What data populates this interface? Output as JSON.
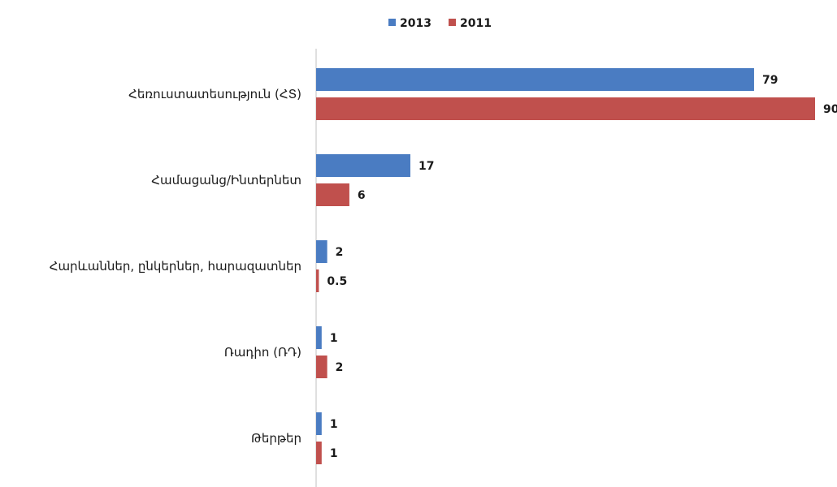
{
  "chart_data": {
    "type": "bar",
    "orientation": "horizontal",
    "categories": [
      "Հեռուստատեսություն (ՀՏ)",
      "Համացանց/Ինտերնետ",
      "Հարևաններ, ընկերներ, հարազատներ",
      "Ռադիո (ՌԴ)",
      "Թերթեր"
    ],
    "series": [
      {
        "name": "2013",
        "color": "#4a7cc2",
        "values": [
          79,
          17,
          2,
          1,
          1
        ],
        "labels": [
          "79",
          "17",
          "2",
          "1",
          "1"
        ]
      },
      {
        "name": "2011",
        "color": "#c0504d",
        "values": [
          90,
          6,
          0.5,
          2,
          1
        ],
        "labels": [
          "90",
          "6",
          "0.5",
          "2",
          "1"
        ]
      }
    ],
    "xlim": [
      0,
      90
    ],
    "grid": false,
    "legend_position": "top-center"
  }
}
